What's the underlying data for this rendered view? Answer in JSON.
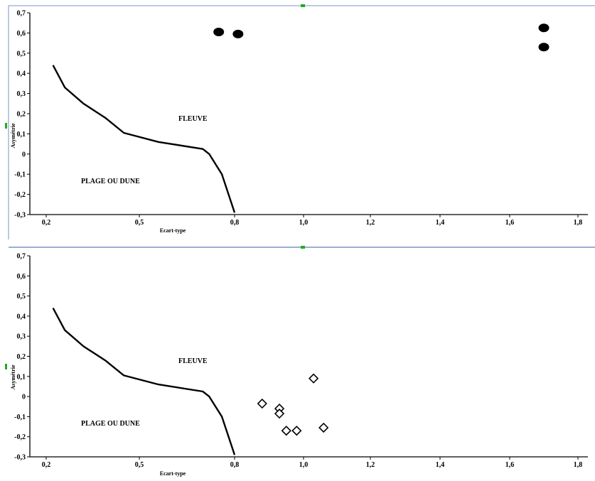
{
  "chart_data": [
    {
      "type": "scatter",
      "title": "",
      "xlabel": "Ecart-type",
      "ylabel": "Asymétrie",
      "x_ticks": [
        "0,2",
        "0,5",
        "0,8",
        "1,0",
        "1,2",
        "1,4",
        "1,6",
        "1,8"
      ],
      "y_ticks": [
        "0,7",
        "0,6",
        "0,5",
        "0,4",
        "0,3",
        "0,2",
        "0,1",
        "0",
        "-0,1",
        "-0,2",
        "-0,3"
      ],
      "ylim": [
        -0.3,
        0.7
      ],
      "region_labels": [
        "FLEUVE",
        "PLAGE OU DUNE"
      ],
      "boundary_line": {
        "x": [
          0.222,
          0.26,
          0.32,
          0.39,
          0.45,
          0.56,
          0.7,
          0.72,
          0.76,
          0.8
        ],
        "y": [
          0.44,
          0.33,
          0.25,
          0.18,
          0.105,
          0.06,
          0.025,
          0.0,
          -0.1,
          -0.29
        ]
      },
      "series": [
        {
          "marker": "filled-circle",
          "color": "#000000",
          "x": [
            0.75,
            0.81,
            1.7,
            1.7
          ],
          "y": [
            0.605,
            0.595,
            0.625,
            0.53
          ]
        }
      ],
      "grid": false,
      "legend": "none"
    },
    {
      "type": "scatter",
      "title": "",
      "xlabel": "Ecart-type",
      "ylabel": "Asymétrie",
      "x_ticks": [
        "0,2",
        "0,5",
        "0,8",
        "1,0",
        "1,2",
        "1,4",
        "1,6",
        "1,8"
      ],
      "y_ticks": [
        "0,7",
        "0,6",
        "0,5",
        "0,4",
        "0,3",
        "0,2",
        "0,1",
        "0",
        "-0,1",
        "-0,2",
        "-0,3"
      ],
      "ylim": [
        -0.3,
        0.7
      ],
      "region_labels": [
        "FLEUVE",
        "PLAGE OU DUNE"
      ],
      "boundary_line": {
        "x": [
          0.222,
          0.26,
          0.32,
          0.39,
          0.45,
          0.56,
          0.7,
          0.72,
          0.76,
          0.8
        ],
        "y": [
          0.44,
          0.33,
          0.25,
          0.18,
          0.105,
          0.06,
          0.025,
          0.0,
          -0.1,
          -0.29
        ]
      },
      "series": [
        {
          "marker": "open-diamond",
          "color": "#000000",
          "x": [
            0.88,
            0.93,
            0.93,
            0.95,
            0.98,
            1.03,
            1.06
          ],
          "y": [
            -0.035,
            -0.06,
            -0.085,
            -0.17,
            -0.17,
            0.09,
            -0.155
          ]
        }
      ],
      "grid": false,
      "legend": "none"
    }
  ],
  "frame": {
    "border_color": "#7b93c4",
    "marker_color": "#22aa22"
  }
}
